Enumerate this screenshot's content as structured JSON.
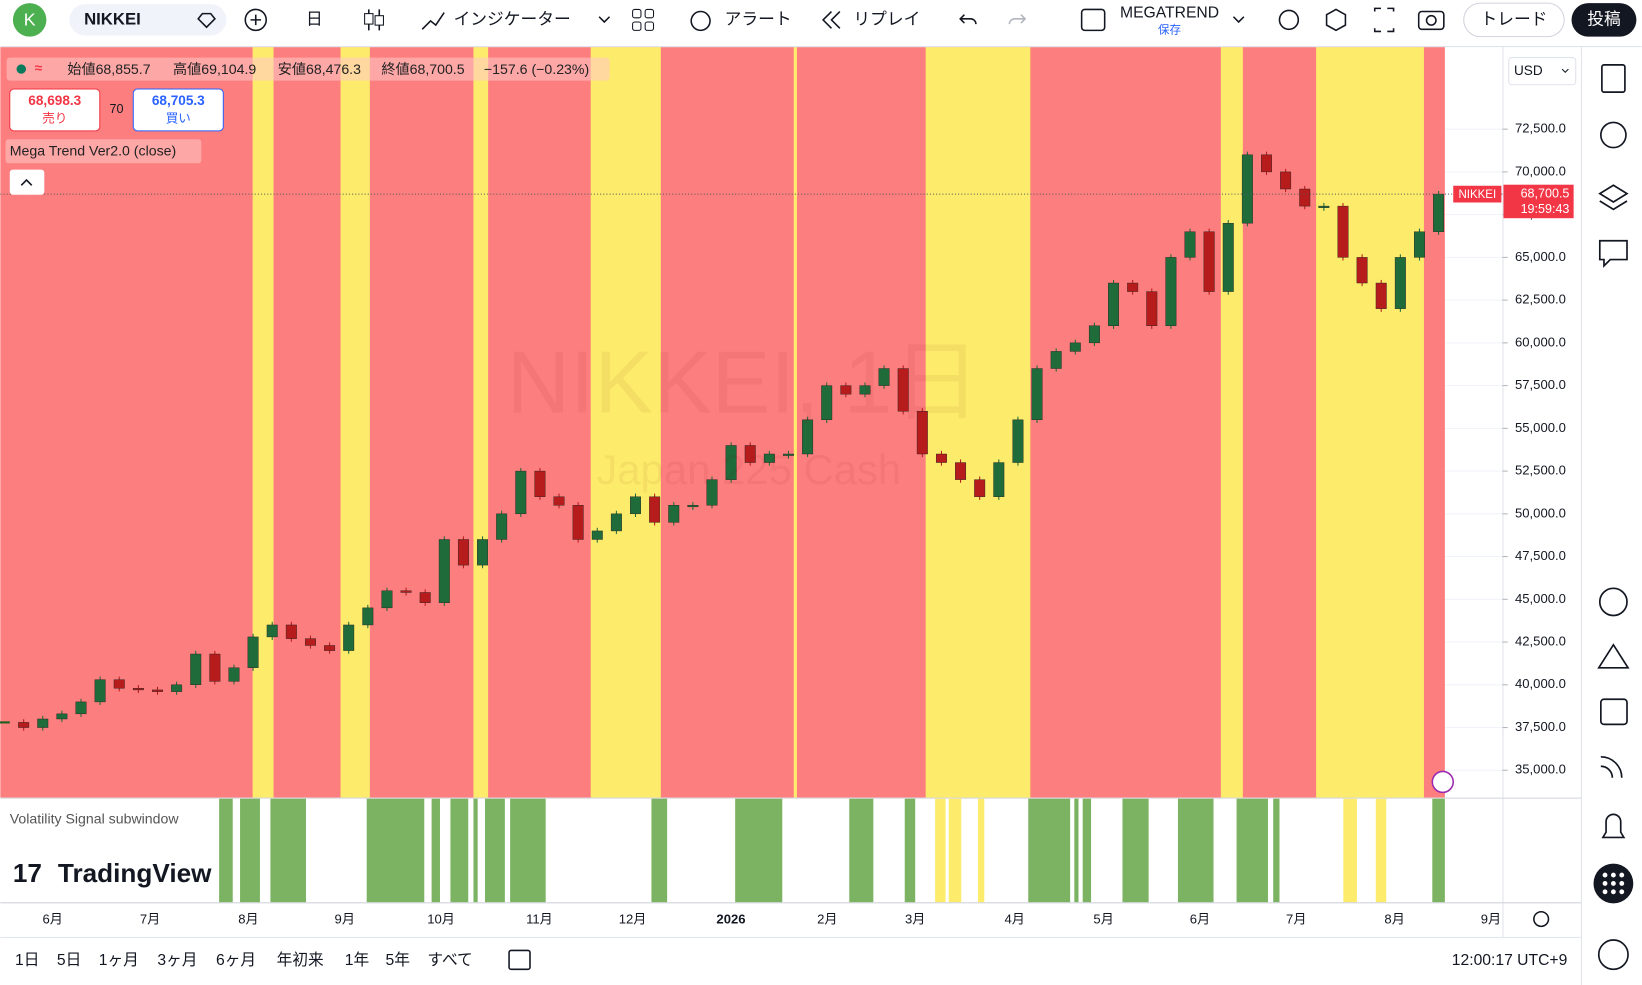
{
  "toolbar": {
    "avatar": "K",
    "symbol": "NIKKEI",
    "interval": "日",
    "indicators": "インジケーター",
    "alert": "アラート",
    "replay": "リプレイ",
    "layout_name": "MEGATREND",
    "layout_status": "保存",
    "trade": "トレード",
    "publish": "投稿"
  },
  "legend": {
    "open": "始値68,855.7",
    "high": "高値69,104.9",
    "low": "安値68,476.3",
    "close": "終値68,700.5",
    "change": "−157.6 (−0.23%)",
    "sell_price": "68,698.3",
    "sell": "売り",
    "spread": "70",
    "buy_price": "68,705.3",
    "buy": "買い",
    "indicator": "Mega Trend Ver2.0 (close)"
  },
  "watermark": {
    "title": "NIKKEI, 1日",
    "subtitle": "Japan 225 Cash"
  },
  "currency": "USD",
  "chart_data": {
    "type": "candlestick",
    "values": [
      37800,
      37500,
      38000,
      38300,
      39000,
      40300,
      39800,
      39700,
      39600,
      40000,
      41800,
      40200,
      41000,
      42800,
      43500,
      42700,
      42300,
      42000,
      43500,
      44500,
      45500,
      45400,
      44800,
      48500,
      47000,
      48500,
      50000,
      52500,
      51000,
      50500,
      48500,
      49000,
      50000,
      51000,
      49500,
      50500,
      50500,
      52000,
      54000,
      53000,
      53500,
      53500,
      55500,
      57500,
      57000,
      57500,
      58500,
      56000,
      53500,
      53000,
      52000,
      51000,
      53000,
      55500,
      58500,
      59500,
      60000,
      61000,
      63500,
      63000,
      61000,
      65000,
      66500,
      63000,
      67000,
      71000,
      70000,
      69000,
      68000,
      68000,
      65000,
      63500,
      62000,
      65000,
      66500,
      68700.5
    ],
    "ylim": [
      33400,
      77300
    ],
    "yticks": [
      {
        "value": 35000,
        "label": "35,000.0"
      },
      {
        "value": 37500,
        "label": "37,500.0"
      },
      {
        "value": 40000,
        "label": "40,000.0"
      },
      {
        "value": 42500,
        "label": "42,500.0"
      },
      {
        "value": 45000,
        "label": "45,000.0"
      },
      {
        "value": 47500,
        "label": "47,500.0"
      },
      {
        "value": 50000,
        "label": "50,000.0"
      },
      {
        "value": 52500,
        "label": "52,500.0"
      },
      {
        "value": 55000,
        "label": "55,000.0"
      },
      {
        "value": 57500,
        "label": "57,500.0"
      },
      {
        "value": 60000,
        "label": "60,000.0"
      },
      {
        "value": 62500,
        "label": "62,500.0"
      },
      {
        "value": 65000,
        "label": "65,000.0"
      },
      {
        "value": 67500,
        "label": "67,500.0"
      },
      {
        "value": 70000,
        "label": "70,000.0"
      },
      {
        "value": 72500,
        "label": "72,500.0"
      }
    ],
    "x_labels": [
      "6月",
      "7月",
      "8月",
      "9月",
      "10月",
      "11月",
      "12月",
      "2026",
      "2月",
      "3月",
      "4月",
      "5月",
      "6月",
      "7月",
      "8月",
      "9月"
    ],
    "last_price": {
      "symbol": "NIKKEI",
      "value": 68700.5,
      "label": "68,700.5",
      "countdown": "19:59:43"
    }
  },
  "subwindow": {
    "title": "Volatility Signal subwindow"
  },
  "branding": "TradingView",
  "ranges": [
    "1日",
    "5日",
    "1ヶ月",
    "3ヶ月",
    "6ヶ月",
    "年初来",
    "1年",
    "5年",
    "すべて"
  ],
  "clock": "12:00:17 UTC+9"
}
